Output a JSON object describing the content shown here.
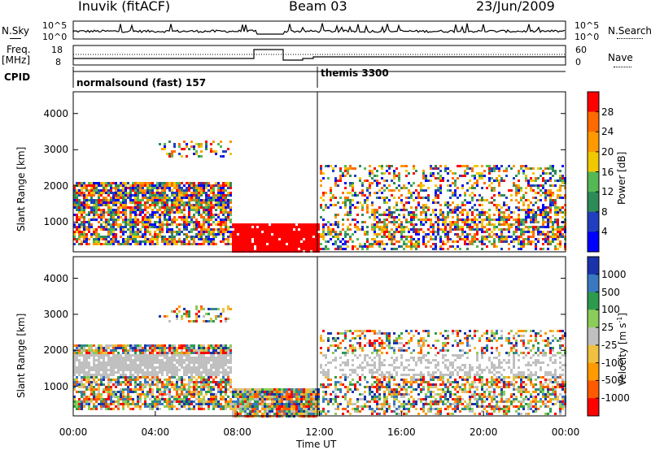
{
  "header": {
    "station": "Inuvik (fitACF)",
    "beam": "Beam 03",
    "date": "23/Jun/2009"
  },
  "top_panels": {
    "nsky_label": "N.Sky",
    "nsearch_label": "N.Search",
    "nsky_ticks": [
      "10^5",
      "10^0"
    ],
    "nsearch_ticks": [
      "10^5",
      "10^0"
    ],
    "freq_label_1": "Freq.",
    "freq_label_2": "[MHz]",
    "freq_ticks": [
      "18",
      "8"
    ],
    "nave_label": "Nave",
    "nave_ticks": [
      "60",
      "0"
    ],
    "cpid_label": "CPID",
    "cpid_1": "normalsound (fast) 157",
    "cpid_2": "themis 3300"
  },
  "chart_data": [
    {
      "type": "heatmap",
      "ylabel": "Slant Range [km]",
      "xlabel": "",
      "y_ticks": [
        "4000",
        "3000",
        "2000",
        "1000"
      ],
      "y_tick_values": [
        4000,
        3000,
        2000,
        1000
      ],
      "ylim": [
        180,
        4600
      ],
      "colorbar_label": "Power [dB]",
      "colorbar_ticks": [
        "28",
        "24",
        "20",
        "16",
        "12",
        "8",
        "4"
      ],
      "colorbar_colors": [
        "#ff0000",
        "#ff6a00",
        "#ff9900",
        "#f0c800",
        "#55b855",
        "#2e8b57",
        "#1f3fbf",
        "#0000ff"
      ],
      "colorbar_levels": [
        0.5,
        0.4,
        0.3,
        0.2,
        0.1,
        0.0
      ]
    },
    {
      "type": "heatmap",
      "ylabel": "Slant Range [km]",
      "xlabel": "Time UT",
      "x_ticks": [
        "00:00",
        "04:00",
        "08:00",
        "12:00",
        "16:00",
        "20:00",
        "00:00"
      ],
      "y_ticks": [
        "4000",
        "3000",
        "2000",
        "1000"
      ],
      "y_tick_values": [
        4000,
        3000,
        2000,
        1000
      ],
      "ylim": [
        180,
        4600
      ],
      "colorbar_label": "Velocity [m s^-1]",
      "colorbar_label_main": "Velocity [m s",
      "colorbar_label_sup": "-1",
      "colorbar_label_end": "]",
      "colorbar_ticks": [
        "1000",
        "500",
        "100",
        "25",
        "-25",
        "-100",
        "-500",
        "-1000"
      ],
      "colorbar_colors": [
        "#1a33aa",
        "#3a78c0",
        "#2e9a4d",
        "#8ccc5a",
        "#c0c0c0",
        "#f0c040",
        "#ff9a00",
        "#ff5a00",
        "#ff0000"
      ]
    }
  ]
}
